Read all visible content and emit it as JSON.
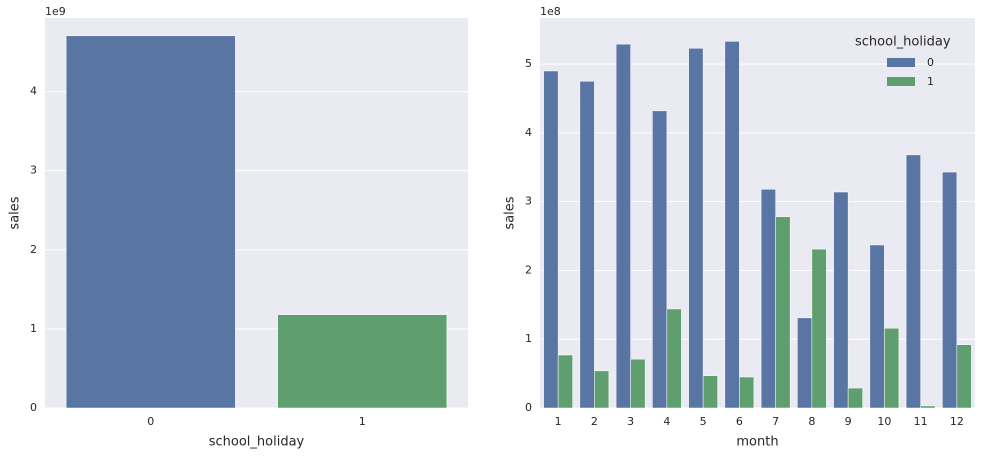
{
  "chart_data": [
    {
      "type": "bar",
      "x_label": "school_holiday",
      "y_label": "sales",
      "offset_label": "1e9",
      "categories": [
        "0",
        "1"
      ],
      "values": [
        4.705,
        1.18
      ],
      "colors": [
        "#5975a4",
        "#5f9e6e"
      ],
      "ylim": [
        0,
        4.93
      ],
      "yticks": [
        0,
        1,
        2,
        3,
        4
      ],
      "grid": true
    },
    {
      "type": "grouped_bar",
      "x_label": "month",
      "y_label": "sales",
      "offset_label": "1e8",
      "legend_title": "school_holiday",
      "legend": "upper right",
      "categories": [
        1,
        2,
        3,
        4,
        5,
        6,
        7,
        8,
        9,
        10,
        11,
        12
      ],
      "series": [
        {
          "name": "0",
          "color": "#5975a4",
          "values": [
            4.9,
            4.75,
            5.29,
            4.32,
            5.23,
            5.33,
            3.18,
            1.31,
            3.14,
            2.37,
            3.68,
            3.43
          ]
        },
        {
          "name": "1",
          "color": "#5f9e6e",
          "values": [
            0.77,
            0.54,
            0.71,
            1.44,
            0.47,
            0.45,
            2.78,
            2.31,
            0.29,
            1.16,
            0.03,
            0.92
          ]
        }
      ],
      "ylim": [
        0,
        5.67
      ],
      "yticks": [
        0,
        1,
        2,
        3,
        4,
        5
      ],
      "grid": true
    }
  ]
}
